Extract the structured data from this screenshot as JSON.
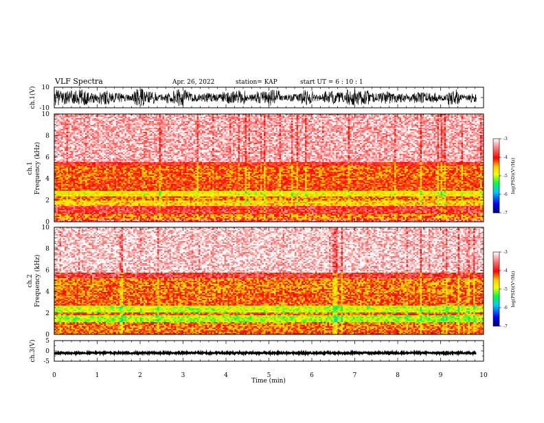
{
  "header": {
    "title": "VLF Spectra",
    "date": "Apr. 26, 2022",
    "station": "station= KAP",
    "start": "start  UT =  6 : 10 : 1"
  },
  "chart_data": [
    {
      "type": "line",
      "panel": "ch1-waveform",
      "ylabel": "ch.1(V)",
      "ylim": [
        -10,
        10
      ],
      "yticks": [
        "10",
        "-10"
      ],
      "xlim": [
        0,
        10
      ],
      "description_values": "dense noise waveform spanning approximately -8 V to +8 V across the full record"
    },
    {
      "type": "heatmap",
      "panel": "ch1-spectrogram",
      "ylabel_top": "ch.1",
      "ylabel": "Frequency  (kHz)",
      "ylim": [
        0,
        10
      ],
      "yticks": [
        "0",
        "2",
        "4",
        "6",
        "8",
        "10"
      ],
      "xlim": [
        0,
        10
      ],
      "bands_khz": [
        {
          "from": 0.0,
          "to": 0.3,
          "level": -3.6
        },
        {
          "from": 0.3,
          "to": 0.8,
          "level": -4.3
        },
        {
          "from": 0.8,
          "to": 1.5,
          "level": -3.8
        },
        {
          "from": 1.5,
          "to": 2.0,
          "level": -4.6
        },
        {
          "from": 2.0,
          "to": 2.4,
          "level": -4.3
        },
        {
          "from": 2.4,
          "to": 2.9,
          "level": -4.8
        },
        {
          "from": 2.9,
          "to": 4.0,
          "level": -4.1
        },
        {
          "from": 4.0,
          "to": 5.2,
          "level": -4.2
        },
        {
          "from": 5.2,
          "to": 5.6,
          "level": -3.9
        },
        {
          "from": 5.6,
          "to": 10.0,
          "level": -3.3
        }
      ],
      "colorbar": {
        "label": "log(PSD)(V²/Hz)",
        "range": [
          -7,
          -3
        ],
        "ticks": [
          "-3",
          "-4",
          "-5",
          "-6",
          "-7"
        ]
      }
    },
    {
      "type": "heatmap",
      "panel": "ch2-spectrogram",
      "ylabel_top": "ch.2",
      "ylabel": "Frequency  (kHz)",
      "ylim": [
        0,
        10
      ],
      "yticks": [
        "0",
        "2",
        "4",
        "6",
        "8",
        "10"
      ],
      "xlim": [
        0,
        10
      ],
      "bands_khz": [
        {
          "from": 0.0,
          "to": 0.4,
          "level": -4.2
        },
        {
          "from": 0.4,
          "to": 1.2,
          "level": -4.3
        },
        {
          "from": 1.2,
          "to": 1.9,
          "level": -5.1
        },
        {
          "from": 1.9,
          "to": 2.1,
          "level": -4.2
        },
        {
          "from": 2.1,
          "to": 2.8,
          "level": -5.0
        },
        {
          "from": 2.8,
          "to": 3.9,
          "level": -4.2
        },
        {
          "from": 3.9,
          "to": 5.3,
          "level": -4.3
        },
        {
          "from": 5.3,
          "to": 5.8,
          "level": -3.8
        },
        {
          "from": 5.8,
          "to": 10.0,
          "level": -3.2
        }
      ],
      "colorbar": {
        "label": "log(PSD)(V²/Hz)",
        "range": [
          -7,
          -3
        ],
        "ticks": [
          "-3",
          "-4",
          "-5",
          "-6",
          "-7"
        ]
      }
    },
    {
      "type": "line",
      "panel": "ch3-waveform",
      "ylabel": "ch.3(V)",
      "ylim": [
        -5,
        5
      ],
      "yticks": [
        "5",
        "0",
        "-5"
      ],
      "xlim": [
        0,
        10
      ],
      "xlabel": "Time  (min)",
      "xticks": [
        "0",
        "1",
        "2",
        "3",
        "4",
        "5",
        "6",
        "7",
        "8",
        "9",
        "10"
      ],
      "description_values": "constant signal near -1 V with about ±0.3 V variation, ending near 9.8 min"
    }
  ],
  "colors": {
    "scale_stops": [
      "#00006e",
      "#0000ff",
      "#00c8ff",
      "#00ff40",
      "#f0ff00",
      "#ffcc00",
      "#ff0000",
      "#ff8080",
      "#ffffff"
    ]
  }
}
